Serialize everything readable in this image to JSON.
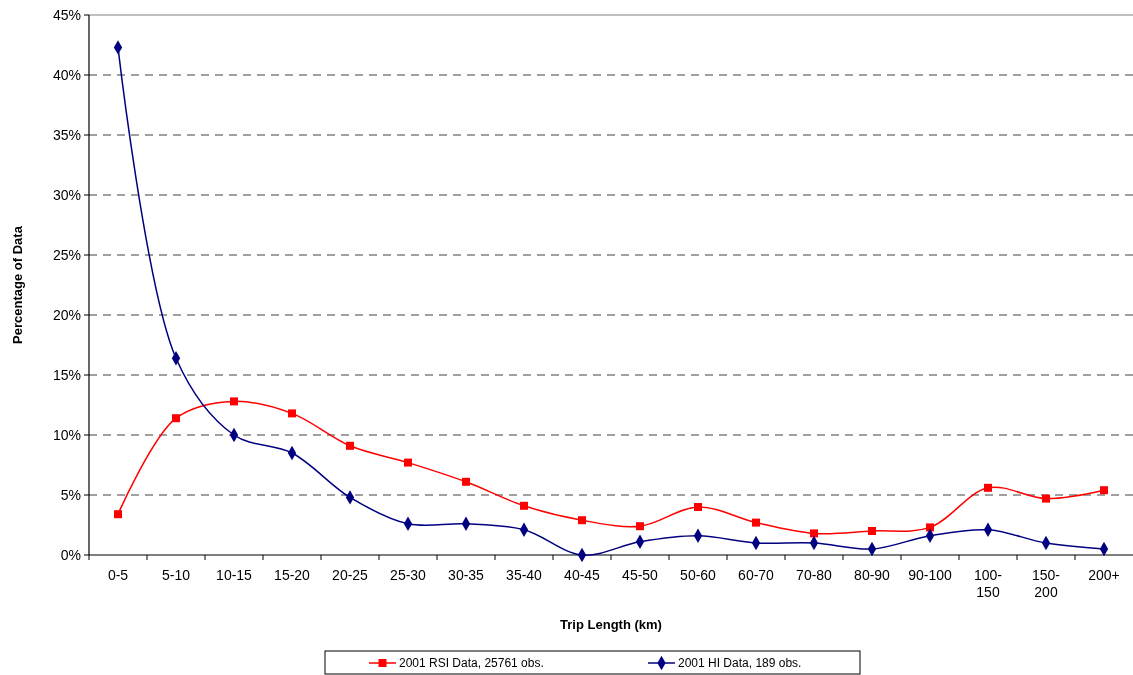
{
  "chart_data": {
    "type": "line",
    "xlabel": "Trip Length (km)",
    "ylabel": "Percentage of Data",
    "categories": [
      "0-5",
      "5-10",
      "10-15",
      "15-20",
      "20-25",
      "25-30",
      "30-35",
      "35-40",
      "40-45",
      "45-50",
      "50-60",
      "60-70",
      "70-80",
      "80-90",
      "90-100",
      "100-150",
      "150-200",
      "200+"
    ],
    "series": [
      {
        "name": "2001 RSI Data, 25761 obs.",
        "color": "#ff0000",
        "marker": "square",
        "values": [
          3.4,
          11.4,
          12.8,
          11.8,
          9.1,
          7.7,
          6.1,
          4.1,
          2.9,
          2.4,
          4.0,
          2.7,
          1.8,
          2.0,
          2.3,
          5.6,
          4.7,
          5.4
        ]
      },
      {
        "name": "2001 HI Data, 189 obs.",
        "color": "#000080",
        "marker": "diamond",
        "values": [
          42.3,
          16.4,
          10.0,
          8.5,
          4.8,
          2.6,
          2.6,
          2.1,
          0,
          1.1,
          1.6,
          1.0,
          1.0,
          0.5,
          1.6,
          2.1,
          1.0,
          0.5
        ]
      }
    ],
    "ylim": [
      0,
      45
    ],
    "yticks": [
      {
        "value": 0,
        "label": "0%"
      },
      {
        "value": 5,
        "label": "5%"
      },
      {
        "value": 10,
        "label": "10%"
      },
      {
        "value": 15,
        "label": "15%"
      },
      {
        "value": 20,
        "label": "20%"
      },
      {
        "value": 25,
        "label": "25%"
      },
      {
        "value": 30,
        "label": "30%"
      },
      {
        "value": 35,
        "label": "35%"
      },
      {
        "value": 40,
        "label": "40%"
      },
      {
        "value": 45,
        "label": "45%"
      }
    ],
    "grid": "y",
    "legend": "bottom"
  }
}
